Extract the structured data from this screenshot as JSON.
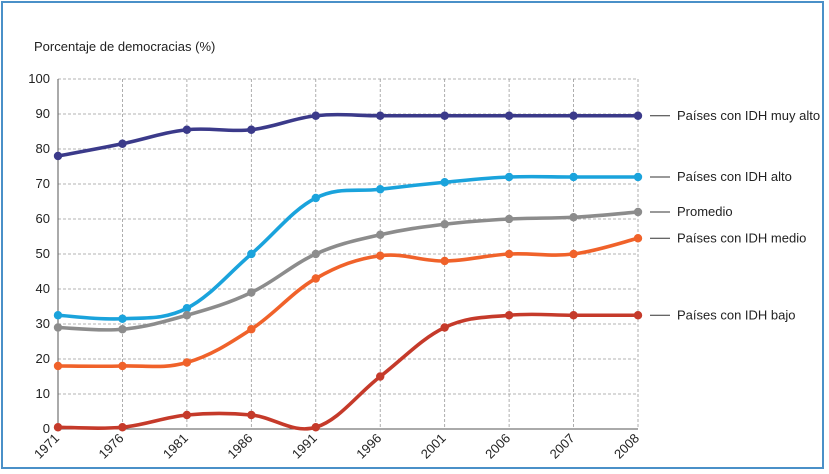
{
  "chart_data": {
    "type": "line",
    "ylabel": "Porcentaje de democracias (%)",
    "ylim": [
      0,
      100
    ],
    "yticks": [
      0,
      10,
      20,
      30,
      40,
      50,
      60,
      70,
      80,
      90,
      100
    ],
    "categories": [
      "1971",
      "1976",
      "1981",
      "1986",
      "1991",
      "1996",
      "2001",
      "2006",
      "2007",
      "2008"
    ],
    "grid": true,
    "series": [
      {
        "name": "Países con IDH muy alto",
        "color": "#3b3a8a",
        "values": [
          78,
          81.5,
          85.5,
          85.5,
          89.5,
          89.5,
          89.5,
          89.5,
          89.5,
          89.5
        ]
      },
      {
        "name": "Países con IDH alto",
        "color": "#1aa3dc",
        "values": [
          32.5,
          31.5,
          34.5,
          50,
          66,
          68.5,
          70.5,
          72,
          72,
          72
        ]
      },
      {
        "name": "Promedio",
        "color": "#8c8c8c",
        "values": [
          29,
          28.5,
          32.5,
          39,
          50,
          55.5,
          58.5,
          60,
          60.5,
          62
        ]
      },
      {
        "name": "Países con IDH medio",
        "color": "#f0622a",
        "values": [
          18,
          18,
          19,
          28.5,
          43,
          49.5,
          48,
          50,
          50,
          54.5
        ]
      },
      {
        "name": "Países con IDH bajo",
        "color": "#c53a2a",
        "values": [
          0.5,
          0.5,
          4,
          4,
          0.5,
          15,
          29,
          32.5,
          32.5,
          32.5
        ]
      }
    ]
  }
}
